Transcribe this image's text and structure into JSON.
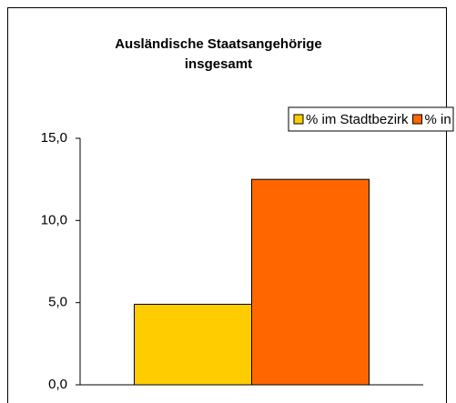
{
  "chart_data": {
    "type": "bar",
    "title": "Ausländische Staatsangehörige insgesamt",
    "categories": [
      null
    ],
    "series": [
      {
        "name": "% im Stadtbezirk",
        "color": "#ffcc00",
        "values": [
          4.9
        ]
      },
      {
        "name": "% in Freiburg",
        "color": "#ff6600",
        "values": [
          12.5
        ]
      }
    ],
    "ylim": [
      0,
      15
    ],
    "yticks": [
      {
        "value": 0,
        "label": "0,0"
      },
      {
        "value": 5,
        "label": "5,0"
      },
      {
        "value": 10,
        "label": "10,0"
      },
      {
        "value": 15,
        "label": "15,0"
      }
    ],
    "legend": "top-right",
    "grid": false
  }
}
